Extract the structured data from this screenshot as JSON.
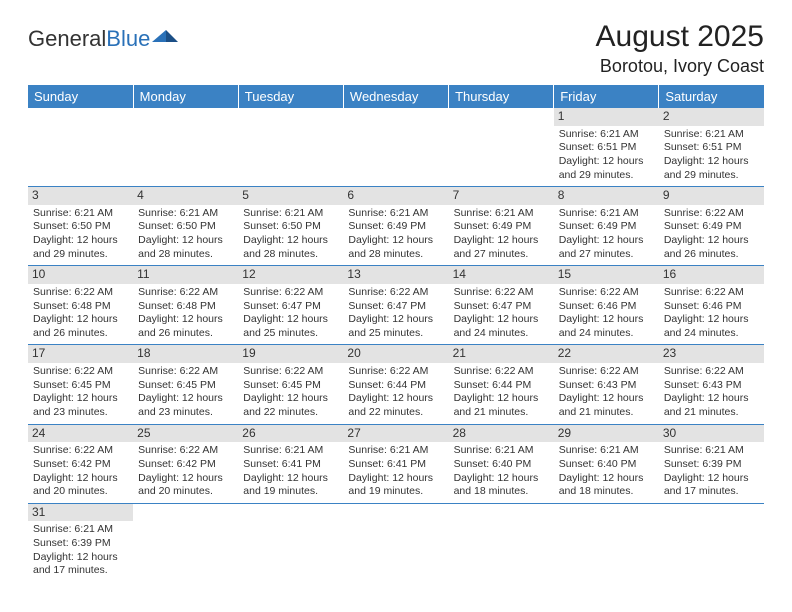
{
  "logo": {
    "part1": "General",
    "part2": "Blue"
  },
  "title": "August 2025",
  "location": "Borotou, Ivory Coast",
  "colors": {
    "header_bg": "#3b82c4",
    "header_text": "#ffffff",
    "daynum_bg": "#e3e3e3",
    "border": "#3b82c4",
    "logo_accent": "#2a71b8"
  },
  "weekdays": [
    "Sunday",
    "Monday",
    "Tuesday",
    "Wednesday",
    "Thursday",
    "Friday",
    "Saturday"
  ],
  "weeks": [
    [
      null,
      null,
      null,
      null,
      null,
      {
        "n": "1",
        "sr": "6:21 AM",
        "ss": "6:51 PM",
        "dl": "12 hours and 29 minutes."
      },
      {
        "n": "2",
        "sr": "6:21 AM",
        "ss": "6:51 PM",
        "dl": "12 hours and 29 minutes."
      }
    ],
    [
      {
        "n": "3",
        "sr": "6:21 AM",
        "ss": "6:50 PM",
        "dl": "12 hours and 29 minutes."
      },
      {
        "n": "4",
        "sr": "6:21 AM",
        "ss": "6:50 PM",
        "dl": "12 hours and 28 minutes."
      },
      {
        "n": "5",
        "sr": "6:21 AM",
        "ss": "6:50 PM",
        "dl": "12 hours and 28 minutes."
      },
      {
        "n": "6",
        "sr": "6:21 AM",
        "ss": "6:49 PM",
        "dl": "12 hours and 28 minutes."
      },
      {
        "n": "7",
        "sr": "6:21 AM",
        "ss": "6:49 PM",
        "dl": "12 hours and 27 minutes."
      },
      {
        "n": "8",
        "sr": "6:21 AM",
        "ss": "6:49 PM",
        "dl": "12 hours and 27 minutes."
      },
      {
        "n": "9",
        "sr": "6:22 AM",
        "ss": "6:49 PM",
        "dl": "12 hours and 26 minutes."
      }
    ],
    [
      {
        "n": "10",
        "sr": "6:22 AM",
        "ss": "6:48 PM",
        "dl": "12 hours and 26 minutes."
      },
      {
        "n": "11",
        "sr": "6:22 AM",
        "ss": "6:48 PM",
        "dl": "12 hours and 26 minutes."
      },
      {
        "n": "12",
        "sr": "6:22 AM",
        "ss": "6:47 PM",
        "dl": "12 hours and 25 minutes."
      },
      {
        "n": "13",
        "sr": "6:22 AM",
        "ss": "6:47 PM",
        "dl": "12 hours and 25 minutes."
      },
      {
        "n": "14",
        "sr": "6:22 AM",
        "ss": "6:47 PM",
        "dl": "12 hours and 24 minutes."
      },
      {
        "n": "15",
        "sr": "6:22 AM",
        "ss": "6:46 PM",
        "dl": "12 hours and 24 minutes."
      },
      {
        "n": "16",
        "sr": "6:22 AM",
        "ss": "6:46 PM",
        "dl": "12 hours and 24 minutes."
      }
    ],
    [
      {
        "n": "17",
        "sr": "6:22 AM",
        "ss": "6:45 PM",
        "dl": "12 hours and 23 minutes."
      },
      {
        "n": "18",
        "sr": "6:22 AM",
        "ss": "6:45 PM",
        "dl": "12 hours and 23 minutes."
      },
      {
        "n": "19",
        "sr": "6:22 AM",
        "ss": "6:45 PM",
        "dl": "12 hours and 22 minutes."
      },
      {
        "n": "20",
        "sr": "6:22 AM",
        "ss": "6:44 PM",
        "dl": "12 hours and 22 minutes."
      },
      {
        "n": "21",
        "sr": "6:22 AM",
        "ss": "6:44 PM",
        "dl": "12 hours and 21 minutes."
      },
      {
        "n": "22",
        "sr": "6:22 AM",
        "ss": "6:43 PM",
        "dl": "12 hours and 21 minutes."
      },
      {
        "n": "23",
        "sr": "6:22 AM",
        "ss": "6:43 PM",
        "dl": "12 hours and 21 minutes."
      }
    ],
    [
      {
        "n": "24",
        "sr": "6:22 AM",
        "ss": "6:42 PM",
        "dl": "12 hours and 20 minutes."
      },
      {
        "n": "25",
        "sr": "6:22 AM",
        "ss": "6:42 PM",
        "dl": "12 hours and 20 minutes."
      },
      {
        "n": "26",
        "sr": "6:21 AM",
        "ss": "6:41 PM",
        "dl": "12 hours and 19 minutes."
      },
      {
        "n": "27",
        "sr": "6:21 AM",
        "ss": "6:41 PM",
        "dl": "12 hours and 19 minutes."
      },
      {
        "n": "28",
        "sr": "6:21 AM",
        "ss": "6:40 PM",
        "dl": "12 hours and 18 minutes."
      },
      {
        "n": "29",
        "sr": "6:21 AM",
        "ss": "6:40 PM",
        "dl": "12 hours and 18 minutes."
      },
      {
        "n": "30",
        "sr": "6:21 AM",
        "ss": "6:39 PM",
        "dl": "12 hours and 17 minutes."
      }
    ],
    [
      {
        "n": "31",
        "sr": "6:21 AM",
        "ss": "6:39 PM",
        "dl": "12 hours and 17 minutes."
      },
      null,
      null,
      null,
      null,
      null,
      null
    ]
  ],
  "labels": {
    "sunrise": "Sunrise: ",
    "sunset": "Sunset: ",
    "daylight": "Daylight: "
  }
}
